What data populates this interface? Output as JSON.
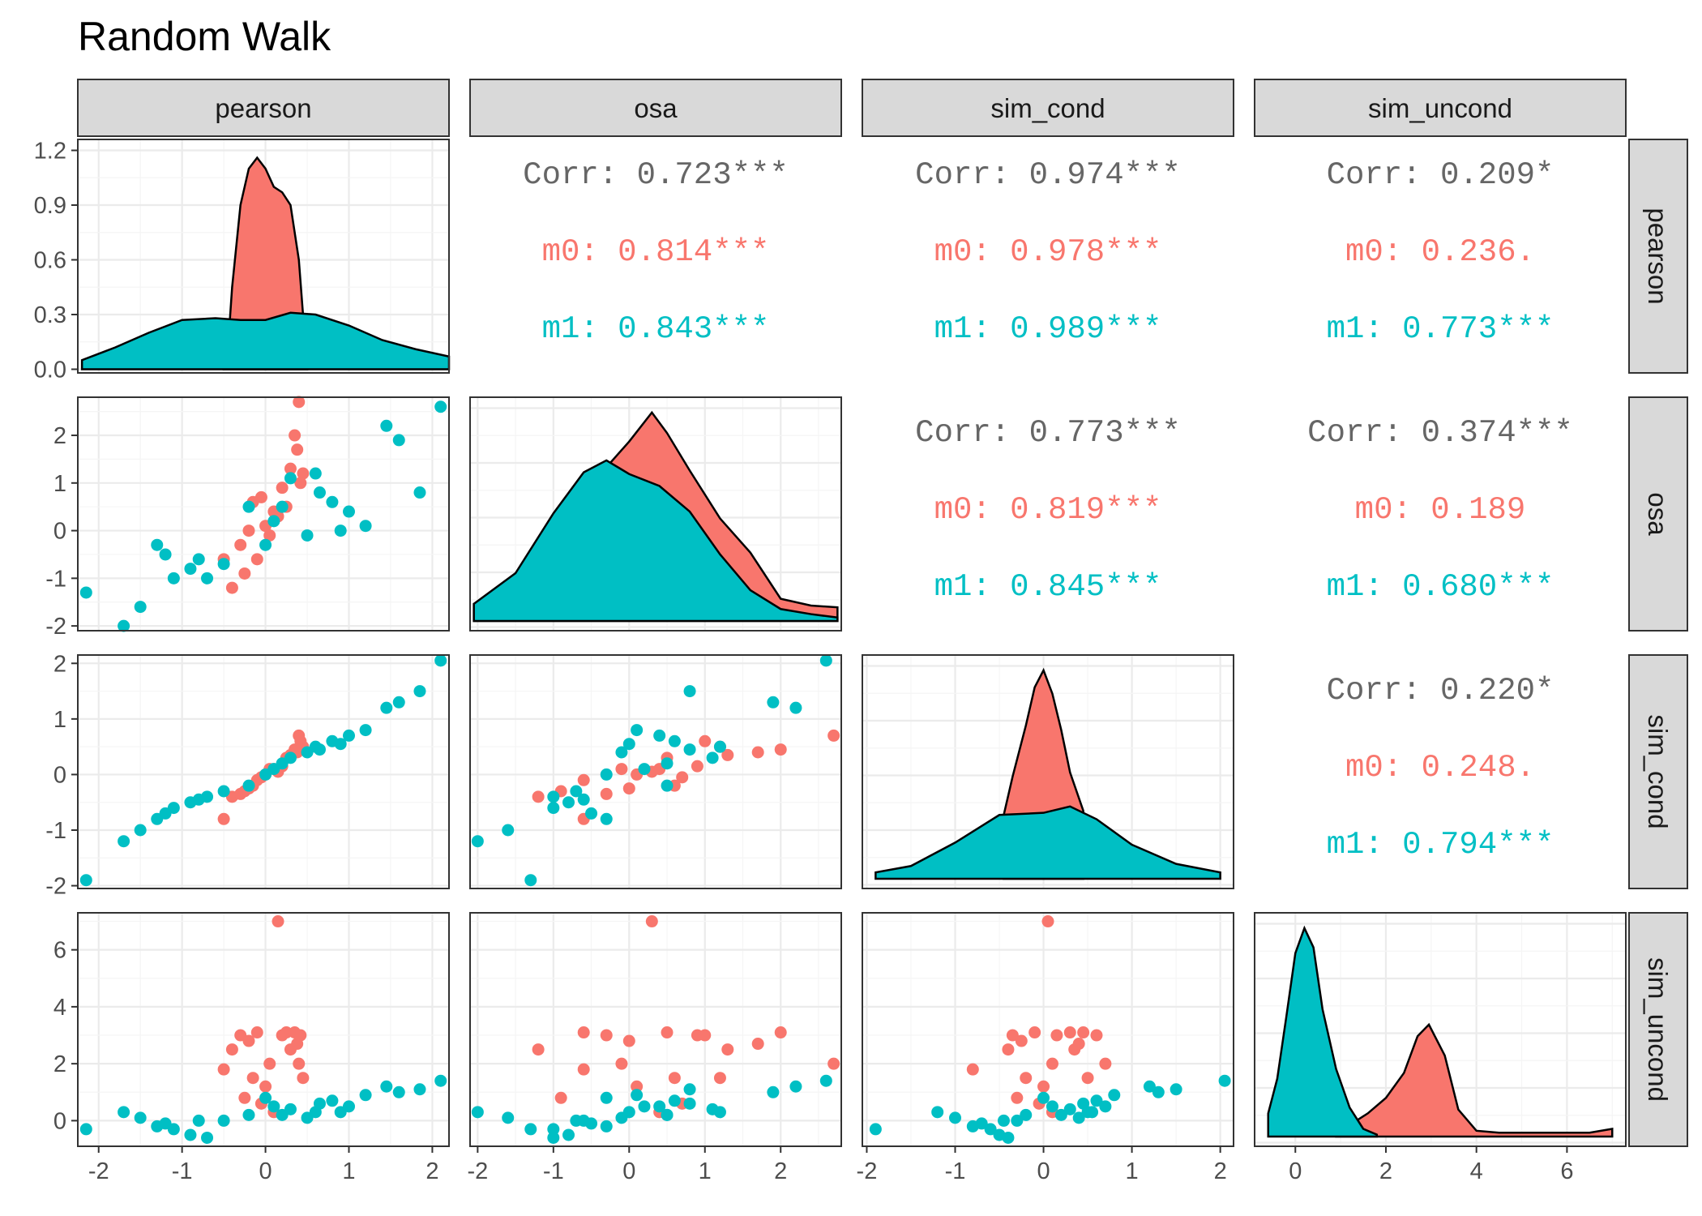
{
  "chart_data": {
    "type": "scatter-matrix",
    "title": "Random Walk",
    "variables": [
      "pearson",
      "osa",
      "sim_cond",
      "sim_uncond"
    ],
    "groups": [
      {
        "name": "m0",
        "color": "#F8766D"
      },
      {
        "name": "m1",
        "color": "#00BFC4"
      }
    ],
    "axes": {
      "pearson": {
        "range": [
          -2.25,
          2.2
        ],
        "ticks": [
          -2,
          -1,
          0,
          1,
          2
        ],
        "tick_labels": [
          "-2",
          "-1",
          "0",
          "1",
          "2"
        ]
      },
      "osa": {
        "range": [
          -2.1,
          2.8
        ],
        "ticks": [
          -2,
          -1,
          0,
          1,
          2
        ],
        "tick_labels": [
          "-2",
          "-1",
          "0",
          "1",
          "2"
        ]
      },
      "sim_cond": {
        "range": [
          -2.05,
          2.15
        ],
        "ticks": [
          -2,
          -1,
          0,
          1,
          2
        ],
        "tick_labels": [
          "-2",
          "-1",
          "0",
          "1",
          "2"
        ]
      },
      "sim_uncond": {
        "range": [
          -0.9,
          7.3
        ],
        "ticks": [
          0,
          2,
          4,
          6
        ],
        "tick_labels": [
          "0",
          "2",
          "4",
          "6"
        ]
      }
    },
    "density_axis": {
      "range": [
        -0.02,
        1.26
      ],
      "ticks": [
        0.0,
        0.3,
        0.6,
        0.9,
        1.2
      ],
      "tick_labels": [
        "0.0",
        "0.3",
        "0.6",
        "0.9",
        "1.2"
      ]
    },
    "correlations": [
      {
        "row": "pearson",
        "col": "osa",
        "corr": "Corr: 0.723***",
        "m0": "m0: 0.814***",
        "m1": "m1: 0.843***"
      },
      {
        "row": "pearson",
        "col": "sim_cond",
        "corr": "Corr: 0.974***",
        "m0": "m0: 0.978***",
        "m1": "m1: 0.989***"
      },
      {
        "row": "pearson",
        "col": "sim_uncond",
        "corr": "Corr: 0.209*",
        "m0": "m0: 0.236.",
        "m1": "m1: 0.773***"
      },
      {
        "row": "osa",
        "col": "sim_cond",
        "corr": "Corr: 0.773***",
        "m0": "m0: 0.819***",
        "m1": "m1: 0.845***"
      },
      {
        "row": "osa",
        "col": "sim_uncond",
        "corr": "Corr: 0.374***",
        "m0": "m0: 0.189",
        "m1": "m1: 0.680***"
      },
      {
        "row": "sim_cond",
        "col": "sim_uncond",
        "corr": "Corr: 0.220*",
        "m0": "m0: 0.248.",
        "m1": "m1: 0.794***"
      }
    ],
    "densities": {
      "pearson": {
        "m0": [
          [
            -0.5,
            0
          ],
          [
            -0.45,
            0.12
          ],
          [
            -0.4,
            0.45
          ],
          [
            -0.3,
            0.9
          ],
          [
            -0.2,
            1.1
          ],
          [
            -0.1,
            1.16
          ],
          [
            0,
            1.1
          ],
          [
            0.1,
            1.0
          ],
          [
            0.2,
            0.97
          ],
          [
            0.3,
            0.9
          ],
          [
            0.4,
            0.6
          ],
          [
            0.45,
            0.3
          ],
          [
            0.5,
            0
          ]
        ],
        "m1": [
          [
            -2.2,
            0.05
          ],
          [
            -1.8,
            0.12
          ],
          [
            -1.4,
            0.2
          ],
          [
            -1.0,
            0.27
          ],
          [
            -0.6,
            0.28
          ],
          [
            -0.3,
            0.27
          ],
          [
            0,
            0.27
          ],
          [
            0.3,
            0.31
          ],
          [
            0.6,
            0.3
          ],
          [
            1.0,
            0.24
          ],
          [
            1.4,
            0.16
          ],
          [
            1.8,
            0.11
          ],
          [
            2.2,
            0.07
          ]
        ]
      },
      "osa": {
        "m0": [
          [
            -2.05,
            0.1
          ],
          [
            -1.5,
            0.25
          ],
          [
            -1.0,
            0.5
          ],
          [
            -0.5,
            0.8
          ],
          [
            0,
            1.05
          ],
          [
            0.3,
            1.22
          ],
          [
            0.5,
            1.1
          ],
          [
            0.8,
            0.88
          ],
          [
            1.2,
            0.6
          ],
          [
            1.6,
            0.4
          ],
          [
            2.0,
            0.13
          ],
          [
            2.4,
            0.09
          ],
          [
            2.75,
            0.08
          ]
        ],
        "m1": [
          [
            -2.05,
            0.1
          ],
          [
            -1.5,
            0.28
          ],
          [
            -1.0,
            0.63
          ],
          [
            -0.6,
            0.87
          ],
          [
            -0.3,
            0.94
          ],
          [
            0,
            0.86
          ],
          [
            0.4,
            0.79
          ],
          [
            0.8,
            0.64
          ],
          [
            1.2,
            0.39
          ],
          [
            1.6,
            0.18
          ],
          [
            2.0,
            0.07
          ],
          [
            2.4,
            0.04
          ],
          [
            2.75,
            0.02
          ]
        ]
      },
      "sim_cond": {
        "m0": [
          [
            -0.45,
            0.3
          ],
          [
            -0.35,
            0.48
          ],
          [
            -0.2,
            0.72
          ],
          [
            -0.1,
            0.9
          ],
          [
            0,
            0.98
          ],
          [
            0.1,
            0.87
          ],
          [
            0.2,
            0.7
          ],
          [
            0.3,
            0.5
          ],
          [
            0.45,
            0.32
          ]
        ],
        "m1": [
          [
            -1.9,
            0.03
          ],
          [
            -1.5,
            0.06
          ],
          [
            -1.0,
            0.17
          ],
          [
            -0.5,
            0.3
          ],
          [
            0,
            0.31
          ],
          [
            0.3,
            0.34
          ],
          [
            0.6,
            0.28
          ],
          [
            1.0,
            0.16
          ],
          [
            1.5,
            0.07
          ],
          [
            2.0,
            0.03
          ]
        ]
      },
      "sim_uncond": {
        "m0": [
          [
            0.9,
            0.01
          ],
          [
            1.2,
            0.06
          ],
          [
            1.6,
            0.12
          ],
          [
            2.0,
            0.2
          ],
          [
            2.4,
            0.33
          ],
          [
            2.7,
            0.52
          ],
          [
            2.95,
            0.58
          ],
          [
            3.3,
            0.42
          ],
          [
            3.6,
            0.14
          ],
          [
            4.0,
            0.03
          ],
          [
            4.5,
            0.02
          ],
          [
            5.5,
            0.02
          ],
          [
            6.5,
            0.02
          ],
          [
            7.0,
            0.04
          ]
        ],
        "m1": [
          [
            -0.6,
            0.12
          ],
          [
            -0.4,
            0.3
          ],
          [
            -0.2,
            0.62
          ],
          [
            0,
            0.95
          ],
          [
            0.2,
            1.08
          ],
          [
            0.4,
            0.98
          ],
          [
            0.6,
            0.66
          ],
          [
            0.9,
            0.35
          ],
          [
            1.2,
            0.15
          ],
          [
            1.5,
            0.04
          ],
          [
            1.8,
            0.01
          ]
        ]
      }
    },
    "points": {
      "m0": {
        "pearson": [
          -0.5,
          -0.4,
          -0.3,
          -0.2,
          -0.1,
          0,
          0.1,
          0.2,
          0.3,
          0.35,
          0.4,
          0.45,
          0.15,
          -0.05,
          0.05,
          0.25,
          -0.25,
          0.38,
          0.42,
          -0.15
        ],
        "osa": [
          -0.6,
          -1.2,
          -0.3,
          0,
          -0.6,
          0.1,
          0.4,
          0.9,
          1.3,
          2.0,
          2.7,
          1.2,
          0.3,
          0.7,
          -0.1,
          0.5,
          -0.9,
          1.7,
          1.0,
          0.6
        ],
        "sim_cond": [
          -0.8,
          -0.4,
          -0.35,
          -0.25,
          -0.1,
          0,
          0.1,
          0.15,
          0.35,
          0.45,
          0.7,
          0.5,
          0.05,
          -0.05,
          0.1,
          0.3,
          -0.3,
          0.4,
          0.6,
          -0.2
        ],
        "sim_uncond": [
          1.8,
          2.5,
          3.0,
          2.8,
          3.1,
          1.2,
          0.3,
          3.0,
          2.5,
          3.1,
          2.0,
          1.5,
          7.0,
          0.6,
          2.0,
          3.1,
          0.8,
          2.7,
          3.0,
          1.5
        ]
      },
      "m1": {
        "pearson": [
          -2.15,
          -1.7,
          -1.5,
          -1.3,
          -1.1,
          -0.9,
          -0.7,
          -0.5,
          -0.2,
          0,
          0.1,
          0.2,
          0.3,
          0.5,
          0.6,
          0.8,
          1.0,
          1.2,
          1.45,
          1.6,
          1.85,
          2.1,
          -1.2,
          -0.8,
          0.65,
          0.9
        ],
        "osa": [
          -1.3,
          -2.0,
          -1.6,
          -0.3,
          -1.0,
          -0.8,
          -1.0,
          -0.7,
          0.5,
          -0.3,
          0.2,
          0.5,
          1.1,
          -0.1,
          1.2,
          0.6,
          0.4,
          0.1,
          2.2,
          1.9,
          0.8,
          2.6,
          -0.5,
          -0.6,
          0.8,
          0.0
        ],
        "sim_cond": [
          -1.9,
          -1.2,
          -1.0,
          -0.8,
          -0.6,
          -0.5,
          -0.4,
          -0.3,
          -0.2,
          0,
          0.1,
          0.2,
          0.3,
          0.4,
          0.5,
          0.6,
          0.7,
          0.8,
          1.2,
          1.3,
          1.5,
          2.05,
          -0.7,
          -0.45,
          0.45,
          0.55
        ],
        "sim_uncond": [
          -0.3,
          0.3,
          0.1,
          -0.2,
          -0.3,
          -0.5,
          -0.6,
          0,
          0.2,
          0.8,
          0.5,
          0.2,
          0.4,
          0.1,
          0.3,
          0.7,
          0.5,
          0.9,
          1.2,
          1.0,
          1.1,
          1.4,
          -0.1,
          0.0,
          0.6,
          0.3
        ]
      }
    }
  }
}
